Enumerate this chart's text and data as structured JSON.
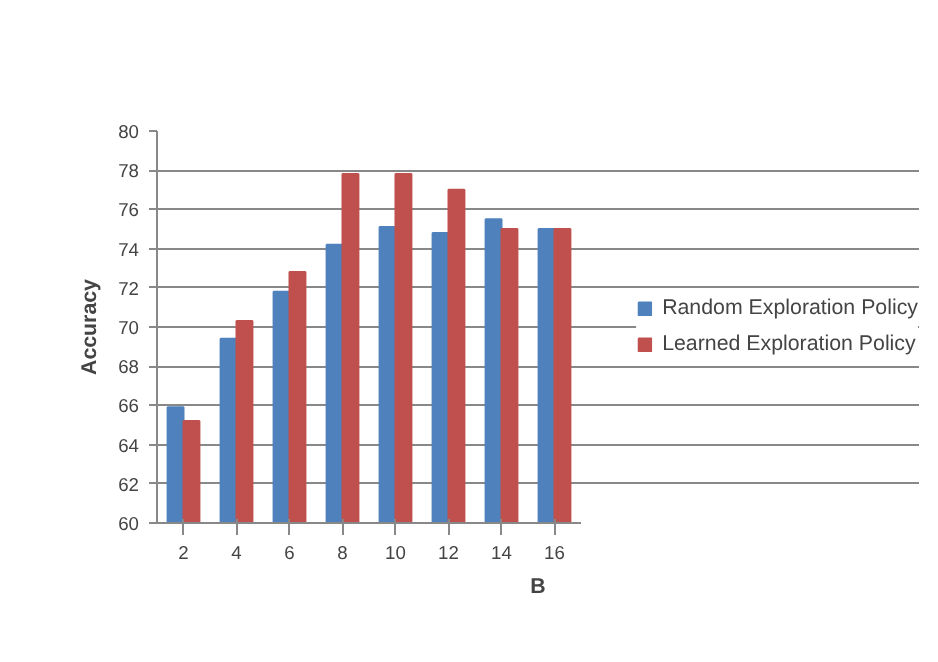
{
  "chart_data": {
    "type": "bar",
    "xlabel": "B",
    "ylabel": "Accuracy",
    "categories": [
      "2",
      "4",
      "6",
      "8",
      "10",
      "12",
      "14",
      "16"
    ],
    "series": [
      {
        "name": "Random Exploration Policy",
        "color": "#4f81bd",
        "values": [
          65.9,
          69.4,
          71.8,
          74.2,
          75.1,
          74.8,
          75.5,
          75.0
        ]
      },
      {
        "name": "Learned Exploration Policy",
        "color": "#c0504d",
        "values": [
          65.2,
          70.3,
          72.8,
          77.8,
          77.8,
          77.0,
          75.0,
          75.0
        ]
      }
    ],
    "ylim": [
      60,
      80
    ],
    "yticks": [
      60,
      62,
      64,
      66,
      68,
      70,
      72,
      74,
      76,
      78,
      80
    ],
    "grid": "y",
    "legend": "right"
  }
}
